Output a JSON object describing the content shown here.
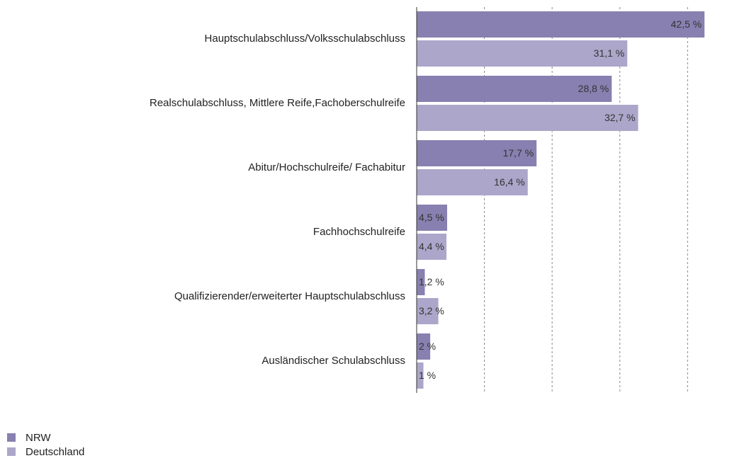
{
  "chart_data": {
    "type": "barh",
    "categories": [
      "Hauptschulabschluss/Volksschulabschluss",
      "Realschulabschluss, Mittlere Reife,Fachoberschulreife",
      "Abitur/Hochschulreife/ Fachabitur",
      "Fachhochschulreife",
      "Qualifizierender/erweiterter Hauptschulabschluss",
      "Ausländischer Schulabschluss"
    ],
    "series": [
      {
        "name": "NRW",
        "color": "#8880b0",
        "values": [
          42.5,
          28.8,
          17.7,
          4.5,
          1.2,
          2
        ],
        "value_labels": [
          "42,5 %",
          "28,8 %",
          "17,7 %",
          "4,5 %",
          "1,2 %",
          "2 %"
        ]
      },
      {
        "name": "Deutschland",
        "color": "#aca6ca",
        "values": [
          31.1,
          32.7,
          16.4,
          4.4,
          3.2,
          1
        ],
        "value_labels": [
          "31,1 %",
          "32,7 %",
          "16,4 %",
          "4,4 %",
          "3,2 %",
          "1 %"
        ]
      }
    ],
    "xlim": [
      0,
      43
    ],
    "xticks": [
      10,
      20,
      30,
      40
    ],
    "grid": true,
    "legend": "bottom-left"
  }
}
